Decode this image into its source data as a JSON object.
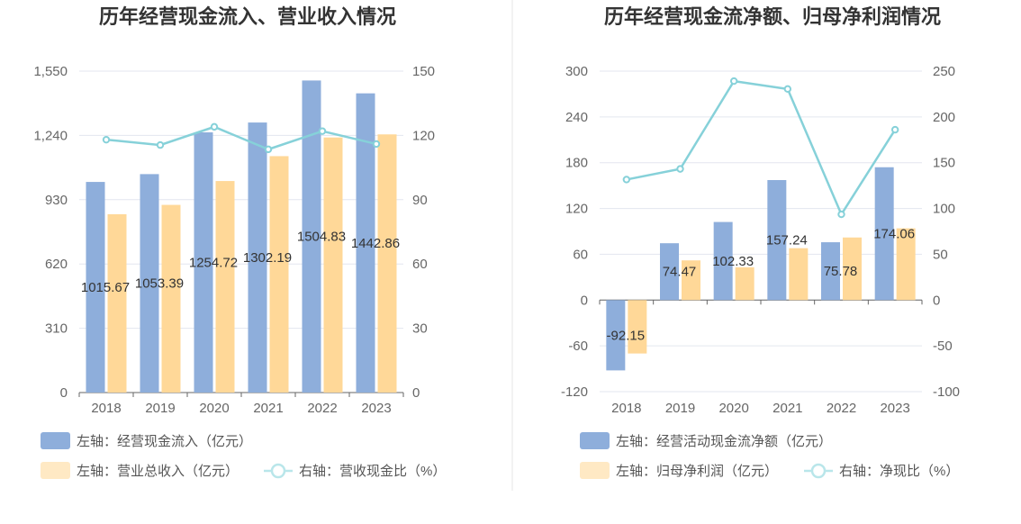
{
  "chart_data": [
    {
      "type": "bar",
      "title": "历年经营现金流入、营业收入情况",
      "categories": [
        "2018",
        "2019",
        "2020",
        "2021",
        "2022",
        "2023"
      ],
      "left_axis": {
        "ticks": [
          "0",
          "310",
          "620",
          "930",
          "1,240",
          "1,550"
        ],
        "ylim": [
          0,
          1550
        ]
      },
      "right_axis": {
        "ticks": [
          "0",
          "30",
          "60",
          "90",
          "120",
          "150"
        ],
        "ylim": [
          0,
          150
        ]
      },
      "series": [
        {
          "name": "左轴：经营现金流入（亿元）",
          "type": "bar",
          "axis": "left",
          "color": "#8eaedb",
          "values": [
            1015.67,
            1053.39,
            1254.72,
            1302.19,
            1504.83,
            1442.86
          ],
          "labels": [
            "1015.67",
            "1053.39",
            "1254.72",
            "1302.19",
            "1504.83",
            "1442.86"
          ]
        },
        {
          "name": "左轴：营业总收入（亿元）",
          "type": "bar",
          "axis": "left",
          "color": "#ffd898",
          "values": [
            860,
            905,
            1020,
            1140,
            1230,
            1245
          ]
        },
        {
          "name": "右轴：营收现金比（%）",
          "type": "line",
          "axis": "right",
          "color": "#86d1d9",
          "values": [
            118,
            115.5,
            124,
            113.5,
            122,
            116
          ]
        }
      ]
    },
    {
      "type": "bar",
      "title": "历年经营现金流净额、归母净利润情况",
      "categories": [
        "2018",
        "2019",
        "2020",
        "2021",
        "2022",
        "2023"
      ],
      "left_axis": {
        "ticks": [
          "-120",
          "-60",
          "0",
          "60",
          "120",
          "180",
          "240",
          "300"
        ],
        "ylim": [
          -120,
          300
        ]
      },
      "right_axis": {
        "ticks": [
          "-100",
          "-50",
          "0",
          "50",
          "100",
          "150",
          "200",
          "250"
        ],
        "ylim": [
          -100,
          250
        ]
      },
      "series": [
        {
          "name": "左轴：经营活动现金流净额（亿元）",
          "type": "bar",
          "axis": "left",
          "color": "#8eaedb",
          "values": [
            -92.15,
            74.47,
            102.33,
            157.24,
            75.78,
            174.06
          ],
          "labels": [
            "-92.15",
            "74.47",
            "102.33",
            "157.24",
            "75.78",
            "174.06"
          ]
        },
        {
          "name": "左轴：归母净利润（亿元）",
          "type": "bar",
          "axis": "left",
          "color": "#ffd898",
          "values": [
            -70,
            52,
            43,
            68,
            82,
            94
          ]
        },
        {
          "name": "右轴：净现比（%）",
          "type": "line",
          "axis": "right",
          "color": "#86d1d9",
          "values": [
            131.6,
            143.2,
            239.1,
            230.5,
            93.6,
            186.0
          ]
        }
      ]
    }
  ]
}
